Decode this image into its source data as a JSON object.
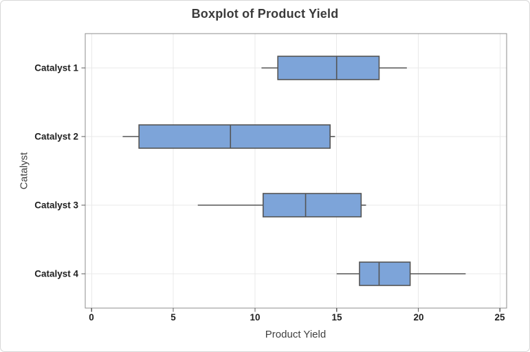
{
  "chart_data": {
    "type": "boxplot",
    "orientation": "horizontal",
    "title": "Boxplot of Product Yield",
    "xlabel": "Product Yield",
    "ylabel": "Catalyst",
    "xlim": [
      0,
      25
    ],
    "x_tick_values": [
      0,
      5,
      10,
      15,
      20,
      25
    ],
    "x_tick_labels": [
      "0",
      "5",
      "10",
      "15",
      "20",
      "25"
    ],
    "categories": [
      "Catalyst 1",
      "Catalyst 2",
      "Catalyst 3",
      "Catalyst 4"
    ],
    "grid": "both",
    "legend": "none",
    "series": [
      {
        "name": "Catalyst 1",
        "whisker_low": 10.4,
        "q1": 11.4,
        "median": 15.0,
        "q3": 17.6,
        "whisker_high": 19.3
      },
      {
        "name": "Catalyst 2",
        "whisker_low": 1.9,
        "q1": 2.9,
        "median": 8.5,
        "q3": 14.6,
        "whisker_high": 14.9
      },
      {
        "name": "Catalyst 3",
        "whisker_low": 6.5,
        "q1": 10.5,
        "median": 13.1,
        "q3": 16.5,
        "whisker_high": 16.8
      },
      {
        "name": "Catalyst 4",
        "whisker_low": 15.0,
        "q1": 16.4,
        "median": 17.6,
        "q3": 19.5,
        "whisker_high": 22.9
      }
    ],
    "colors": {
      "box_fill": "#7DA4D9",
      "box_stroke": "#545454",
      "whisker": "#545454",
      "gridline": "#E9E9E9",
      "plot_border": "#8C8C8C",
      "tick": "#595959",
      "tick_text": "#1F1F1F",
      "axis_label": "#404040",
      "title": "#3A3A3A",
      "background": "#FFFFFF"
    }
  }
}
